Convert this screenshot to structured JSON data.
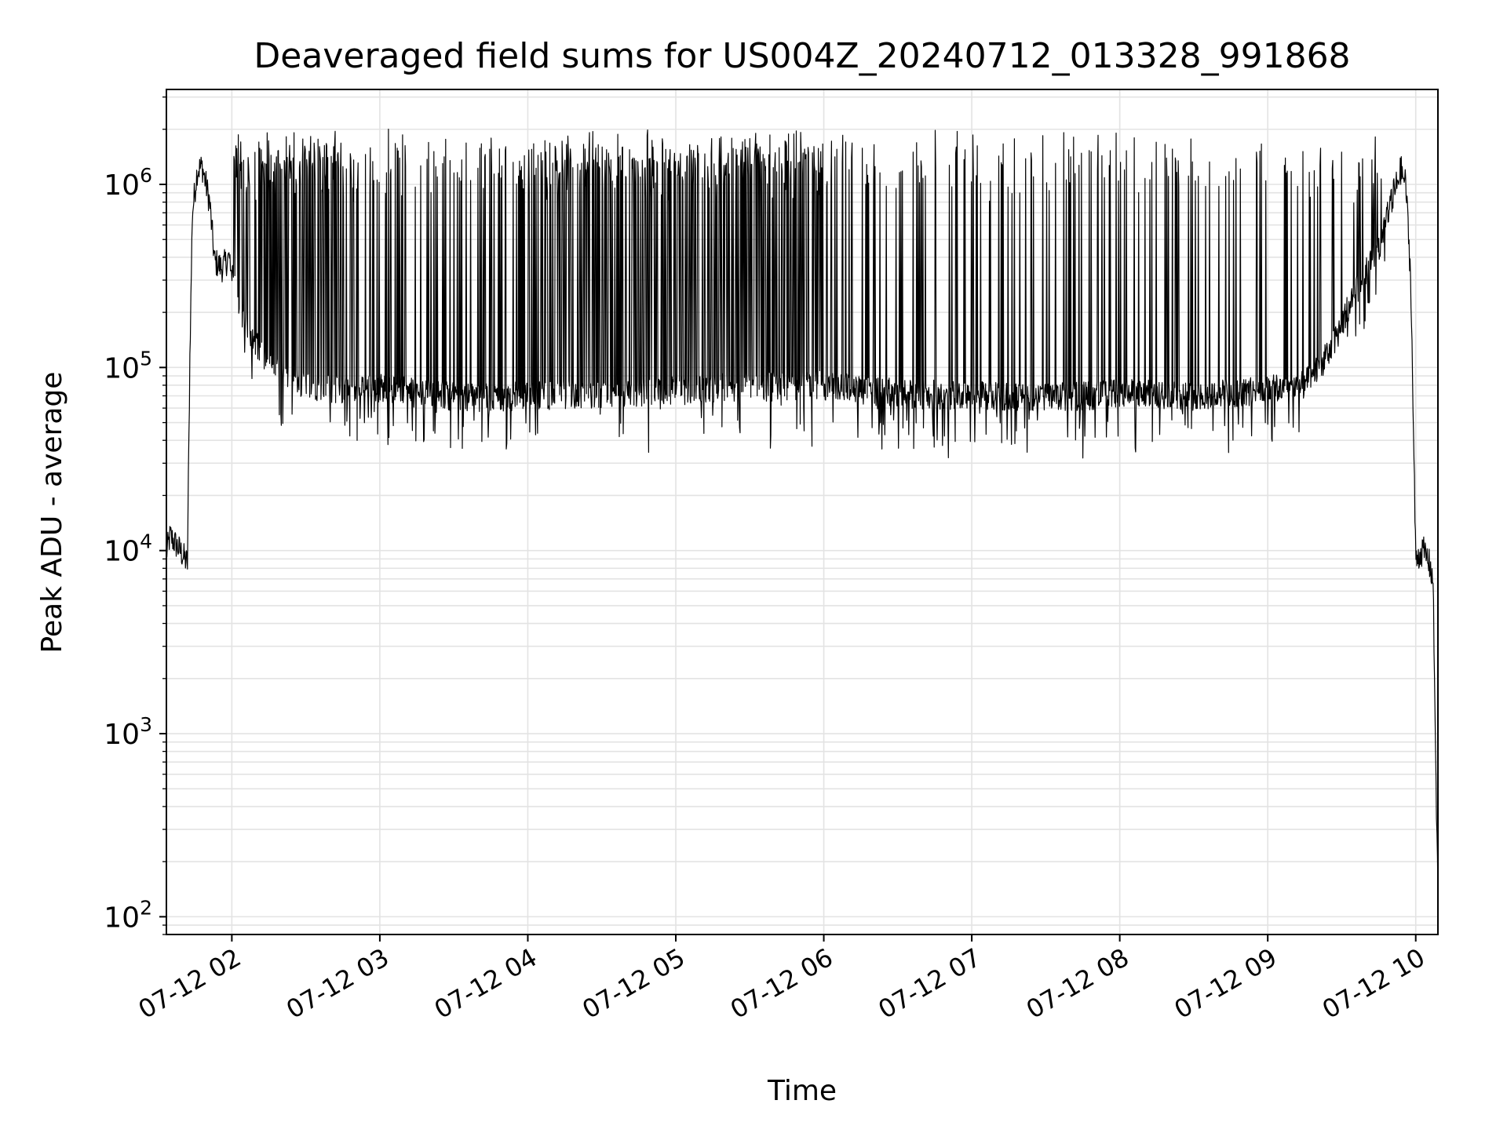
{
  "chart_data": {
    "type": "line",
    "title": "Deaveraged field sums for US004Z_20240712_013328_991868",
    "xlabel": "Time",
    "ylabel": "Peak ADU - average",
    "yscale": "log",
    "ylim": [
      80,
      3300000
    ],
    "xlim": [
      "2024-07-12 01:33:28",
      "2024-07-12 10:09:00"
    ],
    "grid": true,
    "legend": "none",
    "line_color": "#000000",
    "x_ticks": [
      "07-12 02",
      "07-12 03",
      "07-12 04",
      "07-12 05",
      "07-12 06",
      "07-12 07",
      "07-12 08",
      "07-12 09",
      "07-12 10"
    ],
    "y_ticks": [
      {
        "value": 100,
        "base": "10",
        "exp": "2"
      },
      {
        "value": 1000,
        "base": "10",
        "exp": "3"
      },
      {
        "value": 10000,
        "base": "10",
        "exp": "4"
      },
      {
        "value": 100000,
        "base": "10",
        "exp": "5"
      },
      {
        "value": 1000000,
        "base": "10",
        "exp": "6"
      }
    ],
    "series": [
      {
        "x": [
          "2024-07-12 01:33",
          "2024-07-12 01:35",
          "2024-07-12 01:39",
          "2024-07-12 01:42",
          "2024-07-12 01:43",
          "2024-07-12 01:44",
          "2024-07-12 01:46",
          "2024-07-12 01:48",
          "2024-07-12 01:51",
          "2024-07-12 01:53",
          "2024-07-12 01:56",
          "2024-07-12 01:59",
          "2024-07-12 02:04",
          "2024-07-12 02:10",
          "2024-07-12 02:20",
          "2024-07-12 02:30",
          "2024-07-12 02:45",
          "2024-07-12 03:00",
          "2024-07-12 03:15",
          "2024-07-12 03:30",
          "2024-07-12 03:45",
          "2024-07-12 04:00",
          "2024-07-12 04:30",
          "2024-07-12 05:00",
          "2024-07-12 05:30",
          "2024-07-12 06:00",
          "2024-07-12 06:30",
          "2024-07-12 07:00",
          "2024-07-12 07:30",
          "2024-07-12 08:00",
          "2024-07-12 08:30",
          "2024-07-12 09:00",
          "2024-07-12 09:15",
          "2024-07-12 09:25",
          "2024-07-12 09:35",
          "2024-07-12 09:45",
          "2024-07-12 09:50",
          "2024-07-12 09:54",
          "2024-07-12 09:56",
          "2024-07-12 09:58",
          "2024-07-12 10:00",
          "2024-07-12 10:03",
          "2024-07-12 10:05",
          "2024-07-12 10:07",
          "2024-07-12 10:09"
        ],
        "y": [
          9000,
          12000,
          10000,
          8500,
          120000,
          700000,
          1200000,
          1250000,
          800000,
          380000,
          350000,
          400000,
          190000,
          130000,
          90000,
          80000,
          75000,
          78000,
          72000,
          70000,
          68000,
          70000,
          72000,
          75000,
          78000,
          80000,
          72000,
          70000,
          68000,
          72000,
          70000,
          75000,
          80000,
          120000,
          250000,
          450000,
          800000,
          1200000,
          1000000,
          300000,
          9000,
          10000,
          9000,
          7000,
          120
        ]
      }
    ],
    "envelope": {
      "baseline_range": [
        50000,
        95000
      ],
      "spike_peak_typical": 1700000,
      "spike_peak_max": 2000000,
      "dense_spike_intervals": [
        [
          "2024-07-12 02:01",
          "2024-07-12 02:52"
        ],
        [
          "2024-07-12 03:55",
          "2024-07-12 06:00"
        ]
      ]
    }
  }
}
